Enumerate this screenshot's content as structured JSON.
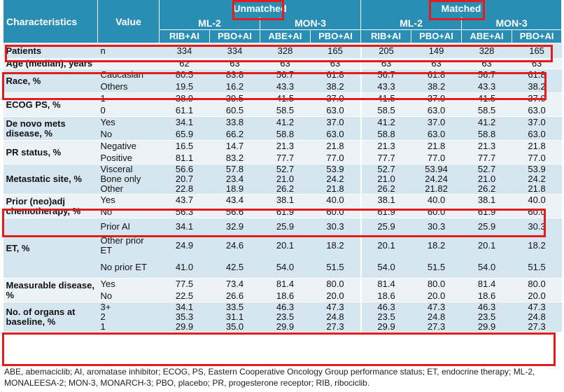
{
  "header": {
    "characteristics": "Characteristics",
    "value": "Value",
    "unmatched": "Unmatched",
    "matched": "Matched",
    "ml2": "ML-2",
    "mon3": "MON-3",
    "col_labels": [
      "RIB+AI",
      "PBO+AI",
      "ABE+AI",
      "PBO+AI",
      "RIB+AI",
      "PBO+AI",
      "ABE+AI",
      "PBO+AI"
    ]
  },
  "groups": [
    {
      "label": "Patients",
      "rows": [
        {
          "value": "n",
          "nums": [
            "334",
            "334",
            "328",
            "165",
            "205",
            "149",
            "328",
            "165"
          ]
        }
      ]
    },
    {
      "label": "Age (median), years",
      "rows": [
        {
          "value": "",
          "nums": [
            "62",
            "63",
            "63",
            "63",
            "63",
            "63",
            "63",
            "63"
          ]
        }
      ]
    },
    {
      "label": "Race, %",
      "rows": [
        {
          "value": "Caucasian",
          "nums": [
            "80.5",
            "83.8",
            "56.7",
            "61.8",
            "56.7",
            "61.8",
            "56.7",
            "61.8"
          ]
        },
        {
          "value": "Others",
          "nums": [
            "19.5",
            "16.2",
            "43.3",
            "38.2",
            "43.3",
            "38.2",
            "43.3",
            "38.2"
          ]
        }
      ]
    },
    {
      "label": "ECOG PS, %",
      "rows": [
        {
          "value": "1",
          "nums": [
            "38.9",
            "39.5",
            "41.5",
            "37.0",
            "41.5",
            "37.0",
            "41.5",
            "37.0"
          ]
        },
        {
          "value": "0",
          "nums": [
            "61.1",
            "60.5",
            "58.5",
            "63.0",
            "58.5",
            "63.0",
            "58.5",
            "63.0"
          ]
        }
      ]
    },
    {
      "label": "De novo mets disease, %",
      "rows": [
        {
          "value": "Yes",
          "nums": [
            "34.1",
            "33.8",
            "41.2",
            "37.0",
            "41.2",
            "37.0",
            "41.2",
            "37.0"
          ]
        },
        {
          "value": "No",
          "nums": [
            "65.9",
            "66.2",
            "58.8",
            "63.0",
            "58.8",
            "63.0",
            "58.8",
            "63.0"
          ]
        }
      ]
    },
    {
      "label": "PR status, %",
      "rows": [
        {
          "value": "Negative",
          "nums": [
            "16.5",
            "14.7",
            "21.3",
            "21.8",
            "21.3",
            "21.8",
            "21.3",
            "21.8"
          ]
        },
        {
          "value": "Positive",
          "nums": [
            "81.1",
            "83.2",
            "77.7",
            "77.0",
            "77.7",
            "77.0",
            "77.7",
            "77.0"
          ]
        }
      ]
    },
    {
      "label": "Metastatic site, %",
      "rows": [
        {
          "value": "Visceral",
          "nums": [
            "56.6",
            "57.8",
            "52.7",
            "53.9",
            "52.7",
            "53.94",
            "52.7",
            "53.9"
          ]
        },
        {
          "value": "Bone only",
          "nums": [
            "20.7",
            "23.4",
            "21.0",
            "24.2",
            "21.0",
            "24.24",
            "21.0",
            "24.2"
          ]
        },
        {
          "value": "Other",
          "nums": [
            "22.8",
            "18.9",
            "26.2",
            "21.8",
            "26.2",
            "21.82",
            "26.2",
            "21.8"
          ]
        }
      ]
    },
    {
      "label": "Prior (neo)adj chemotherapy, %",
      "rows": [
        {
          "value": "Yes",
          "nums": [
            "43.7",
            "43.4",
            "38.1",
            "40.0",
            "38.1",
            "40.0",
            "38.1",
            "40.0"
          ]
        },
        {
          "value": "No",
          "nums": [
            "56.3",
            "56.6",
            "61.9",
            "60.0",
            "61.9",
            "60.0",
            "61.9",
            "60.0"
          ]
        }
      ]
    },
    {
      "label": "ET, %",
      "rows": [
        {
          "value": "Prior AI",
          "nums": [
            "34.1",
            "32.9",
            "25.9",
            "30.3",
            "25.9",
            "30.3",
            "25.9",
            "30.3"
          ]
        },
        {
          "value": "Other prior ET",
          "nums": [
            "24.9",
            "24.6",
            "20.1",
            "18.2",
            "20.1",
            "18.2",
            "20.1",
            "18.2"
          ]
        },
        {
          "value": "No prior ET",
          "nums": [
            "41.0",
            "42.5",
            "54.0",
            "51.5",
            "54.0",
            "51.5",
            "54.0",
            "51.5"
          ]
        }
      ]
    },
    {
      "label": "Measurable disease, %",
      "rows": [
        {
          "value": "Yes",
          "nums": [
            "77.5",
            "73.4",
            "81.4",
            "80.0",
            "81.4",
            "80.0",
            "81.4",
            "80.0"
          ]
        },
        {
          "value": "No",
          "nums": [
            "22.5",
            "26.6",
            "18.6",
            "20.0",
            "18.6",
            "20.0",
            "18.6",
            "20.0"
          ]
        }
      ]
    },
    {
      "label": "No. of organs at baseline, %",
      "rows": [
        {
          "value": "3+",
          "nums": [
            "34.1",
            "33.5",
            "46.3",
            "47.3",
            "46.3",
            "47.3",
            "46.3",
            "47.3"
          ]
        },
        {
          "value": "2",
          "nums": [
            "35.3",
            "31.1",
            "23.5",
            "24.8",
            "23.5",
            "24.8",
            "23.5",
            "24.8"
          ]
        },
        {
          "value": "1",
          "nums": [
            "29.9",
            "35.0",
            "29.9",
            "27.3",
            "29.9",
            "27.3",
            "29.9",
            "27.3"
          ]
        }
      ]
    }
  ],
  "footnote": "ABE, abemaciclib; AI, aromatase inhibitor; ECOG, PS, Eastern Cooperative Oncology Group performance status; ET, endocrine therapy; ML-2, MONALEESA-2; MON-3, MONARCH-3; PBO, placebo; PR, progesterone receptor; RIB, ribociclib.",
  "colors": {
    "header": "#2a8db4",
    "row_dark": "#d5e6f0",
    "row_light": "#ebf2f8",
    "highlight": "#e31b1b"
  }
}
